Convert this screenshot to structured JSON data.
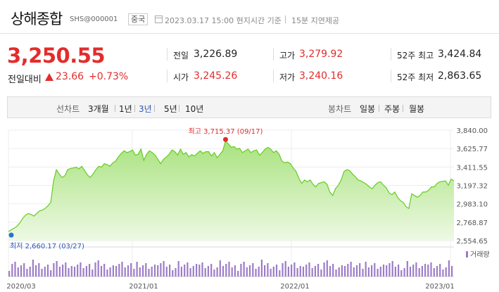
{
  "header": {
    "title": "상해종합",
    "code": "SHS@000001",
    "country": "중국",
    "datetime": "2023.03.17 15:00 현지시간 기준",
    "delay": "15분 지연제공"
  },
  "quote": {
    "price": "3,250.55",
    "change_label": "전일대비",
    "change_value": "23.66",
    "change_pct": "+0.73%",
    "stats": [
      {
        "label": "전일",
        "value": "3,226.89",
        "color": "#222222"
      },
      {
        "label": "고가",
        "value": "3,279.92",
        "color": "#e32c2c"
      },
      {
        "label": "52주 최고",
        "value": "3,424.84",
        "color": "#222222"
      },
      {
        "label": "시가",
        "value": "3,245.26",
        "color": "#e32c2c"
      },
      {
        "label": "저가",
        "value": "3,240.16",
        "color": "#e32c2c"
      },
      {
        "label": "52주 최저",
        "value": "2,863.65",
        "color": "#222222"
      }
    ]
  },
  "toolbar": {
    "line_label": "선차트",
    "periods": [
      "3개월",
      "1년",
      "3년",
      "5년",
      "10년"
    ],
    "active_period": "3년",
    "candle_label": "봉차트",
    "candles": [
      "일봉",
      "주봉",
      "월봉"
    ]
  },
  "chart_data": {
    "type": "area",
    "y_ticks": [
      "3,840.00",
      "3,625.77",
      "3,411.55",
      "3,197.32",
      "2,983.10",
      "2,768.87",
      "2,554.65"
    ],
    "ylim": [
      2554.65,
      3840.0
    ],
    "x_ticks": [
      "2020/03",
      "2021/01",
      "2022/01",
      "2023/01"
    ],
    "high_label": "최고 3,715.37 (09/17)",
    "low_label": "최저 2,660.17 (03/27)",
    "volume_label": "거래량",
    "colors": {
      "line": "#66cc22",
      "fill": "#b8eb96",
      "volume": "#9c7cc8",
      "marker_high": "#e32c2c",
      "marker_low": "#2c6fd6"
    },
    "values": [
      2660.17,
      2680,
      2700,
      2720,
      2760,
      2810,
      2850,
      2870,
      2860,
      2840,
      2870,
      2900,
      2910,
      2930,
      2960,
      3000,
      3250,
      3380,
      3330,
      3290,
      3310,
      3380,
      3395,
      3400,
      3410,
      3390,
      3420,
      3370,
      3320,
      3290,
      3330,
      3380,
      3420,
      3410,
      3450,
      3440,
      3420,
      3460,
      3480,
      3530,
      3570,
      3600,
      3580,
      3590,
      3610,
      3550,
      3560,
      3620,
      3490,
      3560,
      3600,
      3580,
      3550,
      3500,
      3450,
      3500,
      3530,
      3560,
      3610,
      3590,
      3550,
      3620,
      3560,
      3580,
      3530,
      3555,
      3540,
      3570,
      3600,
      3570,
      3590,
      3590,
      3540,
      3580,
      3520,
      3560,
      3600,
      3715.37,
      3680,
      3640,
      3650,
      3620,
      3630,
      3580,
      3600,
      3620,
      3580,
      3600,
      3610,
      3550,
      3580,
      3620,
      3640,
      3620,
      3580,
      3600,
      3560,
      3480,
      3460,
      3470,
      3450,
      3400,
      3360,
      3280,
      3220,
      3260,
      3240,
      3260,
      3210,
      3180,
      3220,
      3230,
      3240,
      3210,
      3120,
      3080,
      3160,
      3200,
      3260,
      3360,
      3380,
      3370,
      3330,
      3300,
      3260,
      3250,
      3230,
      3210,
      3180,
      3160,
      3200,
      3230,
      3240,
      3200,
      3170,
      3110,
      3090,
      3120,
      3060,
      3020,
      3000,
      2950,
      2930,
      3100,
      3080,
      3060,
      3080,
      3120,
      3120,
      3140,
      3180,
      3180,
      3220,
      3240,
      3245,
      3250,
      3200,
      3270,
      3250.55
    ]
  }
}
